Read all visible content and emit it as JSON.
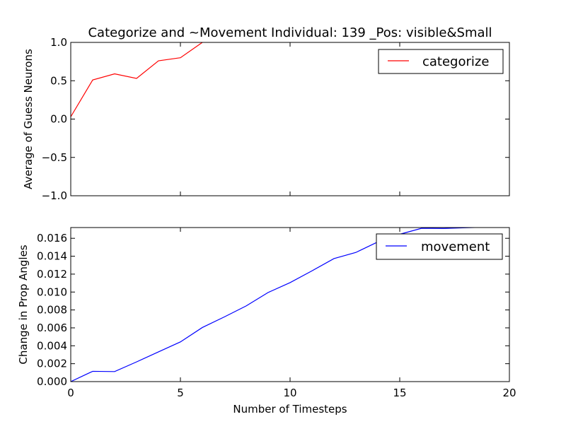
{
  "chart_data": [
    {
      "type": "line",
      "title": "Categorize and ~Movement Individual: 139 _Pos: visible&Small",
      "xlabel": "",
      "ylabel": "Average of Guess Neurons",
      "xlim": [
        0,
        20
      ],
      "ylim": [
        -1.0,
        1.0
      ],
      "yticks": [
        "1.0",
        "0.5",
        "0.0",
        "−0.5",
        "−1.0"
      ],
      "ytick_values": [
        1.0,
        0.5,
        0.0,
        -0.5,
        -1.0
      ],
      "show_xtick_labels": false,
      "xticks": [
        0,
        5,
        10,
        15,
        20
      ],
      "grid": false,
      "legend_position": "top-right",
      "series": [
        {
          "name": "categorize",
          "color": "#ff0000",
          "x": [
            0,
            1,
            2,
            3,
            4,
            5,
            6
          ],
          "y": [
            0.03,
            0.51,
            0.59,
            0.53,
            0.76,
            0.8,
            1.0
          ]
        }
      ]
    },
    {
      "type": "line",
      "title": "",
      "xlabel": "Number of Timesteps",
      "ylabel": "Change in Prop Angles",
      "xlim": [
        0,
        20
      ],
      "ylim": [
        0.0,
        0.0172
      ],
      "yticks": [
        "0.016",
        "0.014",
        "0.012",
        "0.010",
        "0.008",
        "0.006",
        "0.004",
        "0.002",
        "0.000"
      ],
      "ytick_values": [
        0.016,
        0.014,
        0.012,
        0.01,
        0.008,
        0.006,
        0.004,
        0.002,
        0.0
      ],
      "show_xtick_labels": true,
      "xticks": [
        "0",
        "5",
        "10",
        "15",
        "20"
      ],
      "xtick_values": [
        0,
        5,
        10,
        15,
        20
      ],
      "grid": false,
      "legend_position": "top-right",
      "series": [
        {
          "name": "movement",
          "color": "#0000ff",
          "x": [
            0,
            1,
            2,
            3,
            4,
            5,
            6,
            7,
            8,
            9,
            10,
            11,
            12,
            13,
            14,
            15,
            16,
            17,
            18,
            19
          ],
          "y": [
            0.0,
            0.00115,
            0.00112,
            0.0022,
            0.00332,
            0.00443,
            0.00604,
            0.00722,
            0.00845,
            0.00995,
            0.01105,
            0.01237,
            0.01373,
            0.01442,
            0.0156,
            0.01645,
            0.01712,
            0.0171,
            0.01718,
            0.01725
          ]
        }
      ]
    }
  ]
}
